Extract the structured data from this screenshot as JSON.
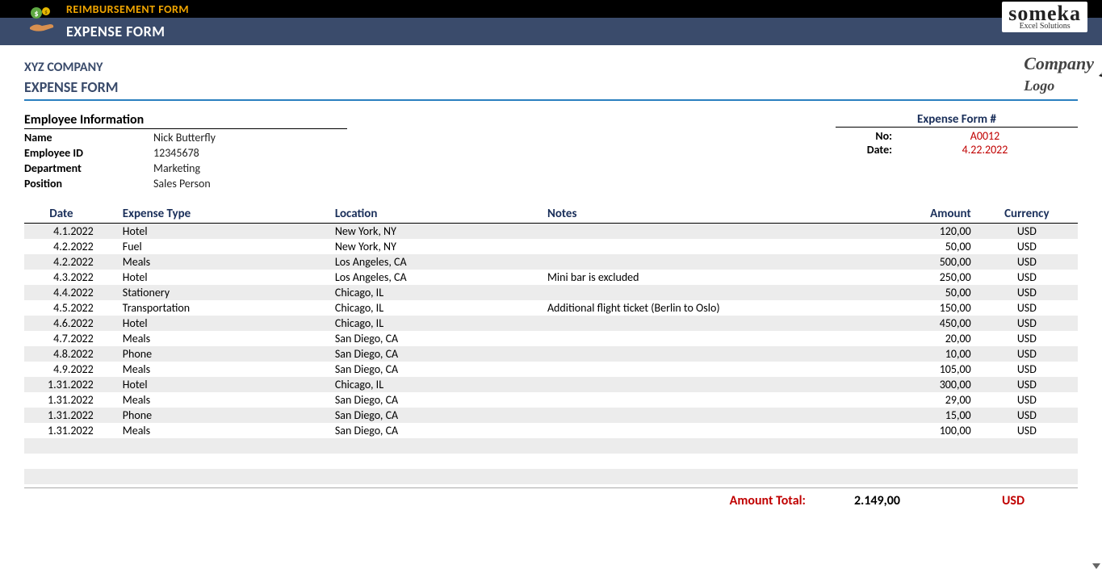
{
  "topbar": {
    "title": "REIMBURSEMENT FORM"
  },
  "subbar": {
    "title": "EXPENSE FORM"
  },
  "someka": {
    "main": "someka",
    "sub": "Excel Solutions"
  },
  "company": {
    "name": "XYZ COMPANY",
    "formtitle": "EXPENSE FORM",
    "logo_text": "Company",
    "logo_sub": "Logo"
  },
  "emp": {
    "section_title": "Employee Information",
    "labels": {
      "name": "Name",
      "id": "Employee ID",
      "dept": "Department",
      "pos": "Position"
    },
    "name": "Nick Butterfly",
    "id": "12345678",
    "dept": "Marketing",
    "pos": "Sales Person"
  },
  "formmeta": {
    "title": "Expense Form #",
    "no_label": "No:",
    "no": "A0012",
    "date_label": "Date:",
    "date": "4.22.2022"
  },
  "table": {
    "headers": {
      "date": "Date",
      "type": "Expense Type",
      "loc": "Location",
      "notes": "Notes",
      "amt": "Amount",
      "cur": "Currency"
    },
    "rows": [
      {
        "date": "4.1.2022",
        "type": "Hotel",
        "loc": "New York, NY",
        "notes": "",
        "amt": "120,00",
        "cur": "USD"
      },
      {
        "date": "4.2.2022",
        "type": "Fuel",
        "loc": "New York, NY",
        "notes": "",
        "amt": "50,00",
        "cur": "USD"
      },
      {
        "date": "4.2.2022",
        "type": "Meals",
        "loc": "Los Angeles, CA",
        "notes": "",
        "amt": "500,00",
        "cur": "USD"
      },
      {
        "date": "4.3.2022",
        "type": "Hotel",
        "loc": "Los Angeles, CA",
        "notes": "Mini bar is excluded",
        "amt": "250,00",
        "cur": "USD"
      },
      {
        "date": "4.4.2022",
        "type": "Stationery",
        "loc": "Chicago, IL",
        "notes": "",
        "amt": "50,00",
        "cur": "USD"
      },
      {
        "date": "4.5.2022",
        "type": "Transportation",
        "loc": "Chicago, IL",
        "notes": "Additional flight ticket (Berlin to Oslo)",
        "amt": "150,00",
        "cur": "USD"
      },
      {
        "date": "4.6.2022",
        "type": "Hotel",
        "loc": "Chicago, IL",
        "notes": "",
        "amt": "450,00",
        "cur": "USD"
      },
      {
        "date": "4.7.2022",
        "type": "Meals",
        "loc": "San Diego, CA",
        "notes": "",
        "amt": "20,00",
        "cur": "USD"
      },
      {
        "date": "4.8.2022",
        "type": "Phone",
        "loc": "San Diego, CA",
        "notes": "",
        "amt": "10,00",
        "cur": "USD"
      },
      {
        "date": "4.9.2022",
        "type": "Meals",
        "loc": "San Diego, CA",
        "notes": "",
        "amt": "105,00",
        "cur": "USD"
      },
      {
        "date": "1.31.2022",
        "type": "Hotel",
        "loc": "Chicago, IL",
        "notes": "",
        "amt": "300,00",
        "cur": "USD"
      },
      {
        "date": "1.31.2022",
        "type": "Meals",
        "loc": "San Diego, CA",
        "notes": "",
        "amt": "29,00",
        "cur": "USD"
      },
      {
        "date": "1.31.2022",
        "type": "Phone",
        "loc": "San Diego, CA",
        "notes": "",
        "amt": "15,00",
        "cur": "USD"
      },
      {
        "date": "1.31.2022",
        "type": "Meals",
        "loc": "San Diego, CA",
        "notes": "",
        "amt": "100,00",
        "cur": "USD"
      }
    ],
    "empty_rows": 3
  },
  "total": {
    "label": "Amount Total:",
    "amount": "2.149,00",
    "currency": "USD"
  },
  "colors": {
    "accent": "#c00000",
    "header": "#3a4b6b",
    "blue": "#2a7fbf",
    "stripe": "#ececec",
    "darknavy": "#1a2f5a",
    "gold": "#f0a500"
  }
}
